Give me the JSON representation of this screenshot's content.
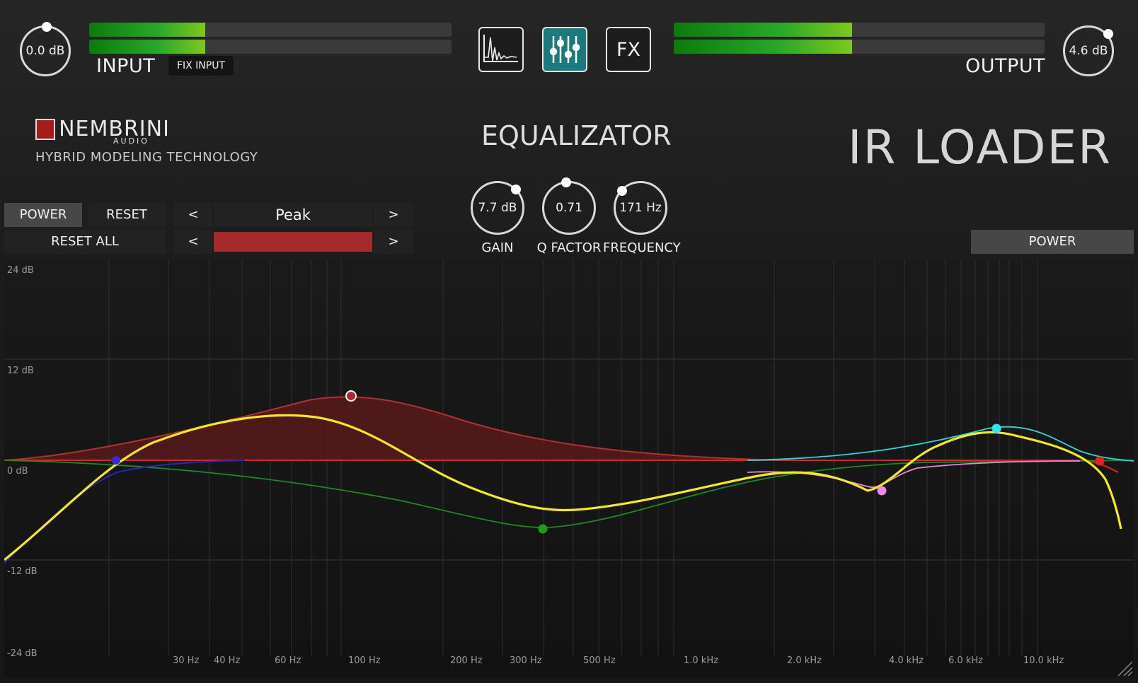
{
  "input": {
    "knob_value": "0.0 dB",
    "label": "INPUT",
    "fix_button": "FIX INPUT",
    "meter_levels": [
      0.32,
      0.32
    ]
  },
  "output": {
    "knob_value": "4.6 dB",
    "label": "OUTPUT",
    "meter_levels": [
      0.48,
      0.48
    ]
  },
  "modes": {
    "active": "equalizer",
    "fx_label": "FX"
  },
  "brand": {
    "logo_text": "NEMBRINI",
    "logo_sub": "AUDIO",
    "tagline": "HYBRID MODELING TECHNOLOGY"
  },
  "section_title": "EQUALIZATOR",
  "product_title": "IR LOADER",
  "controls": {
    "power": "POWER",
    "reset": "RESET",
    "reset_all": "RESET ALL",
    "prev": "<",
    "next": ">",
    "filter_type": "Peak",
    "band_color": "#a52a2a",
    "right_power": "POWER"
  },
  "knobs": [
    {
      "value": "7.7 dB",
      "label": "GAIN"
    },
    {
      "value": "0.71",
      "label": "Q FACTOR"
    },
    {
      "value": "171 Hz",
      "label": "FREQUENCY"
    }
  ],
  "graph": {
    "db_labels": [
      "24 dB",
      "12 dB",
      "0 dB",
      "-12 dB",
      "-24 dB"
    ],
    "freq_labels": [
      "30 Hz",
      "40 Hz",
      "60 Hz",
      "100 Hz",
      "200 Hz",
      "300 Hz",
      "500 Hz",
      "1.0 kHz",
      "2.0 kHz",
      "4.0 kHz",
      "6.0 kHz",
      "10.0 kHz"
    ],
    "colors": {
      "yellow": "#f2ea1a",
      "red": "#e02424",
      "green": "#1f8a1f",
      "blue": "#2424c8",
      "cyan": "#28d8e0",
      "pink": "#e884e8",
      "fill": "#5a1a1a"
    }
  }
}
